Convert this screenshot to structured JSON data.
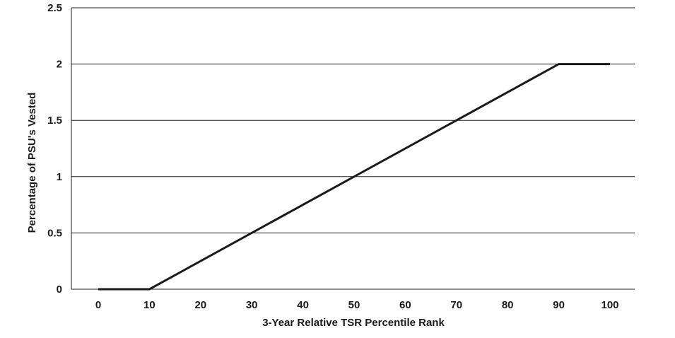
{
  "chart_data": {
    "type": "line",
    "title": "",
    "xlabel": "3-Year Relative TSR Percentile Rank",
    "ylabel": "Percentage of PSU's Vested",
    "xlim": [
      0,
      100
    ],
    "ylim": [
      0,
      2.5
    ],
    "x_ticks": [
      "0",
      "10",
      "20",
      "30",
      "40",
      "50",
      "60",
      "70",
      "80",
      "90",
      "100"
    ],
    "y_ticks": [
      "0",
      "0.5",
      "1",
      "1.5",
      "2",
      "2.5"
    ],
    "grid": "horizontal",
    "legend": "none",
    "series": [
      {
        "x": [
          0,
          10,
          90,
          100
        ],
        "y": [
          0,
          0,
          2,
          2
        ],
        "color": "#1a1a1a"
      }
    ]
  }
}
